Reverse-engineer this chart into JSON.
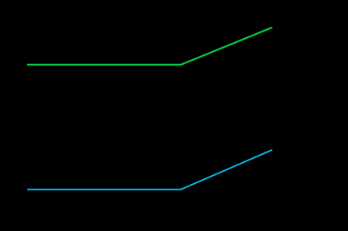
{
  "background_color": "#000000",
  "green_line": {
    "x": [
      0.08,
      0.52,
      0.78
    ],
    "y": [
      0.72,
      0.72,
      0.88
    ],
    "color": "#00cc44",
    "linewidth": 1.6
  },
  "cyan_line": {
    "x": [
      0.08,
      0.52,
      0.78
    ],
    "y": [
      0.18,
      0.18,
      0.35
    ],
    "color": "#00bbee",
    "linewidth": 1.4
  },
  "figsize": [
    4.28,
    2.85
  ],
  "dpi": 100
}
